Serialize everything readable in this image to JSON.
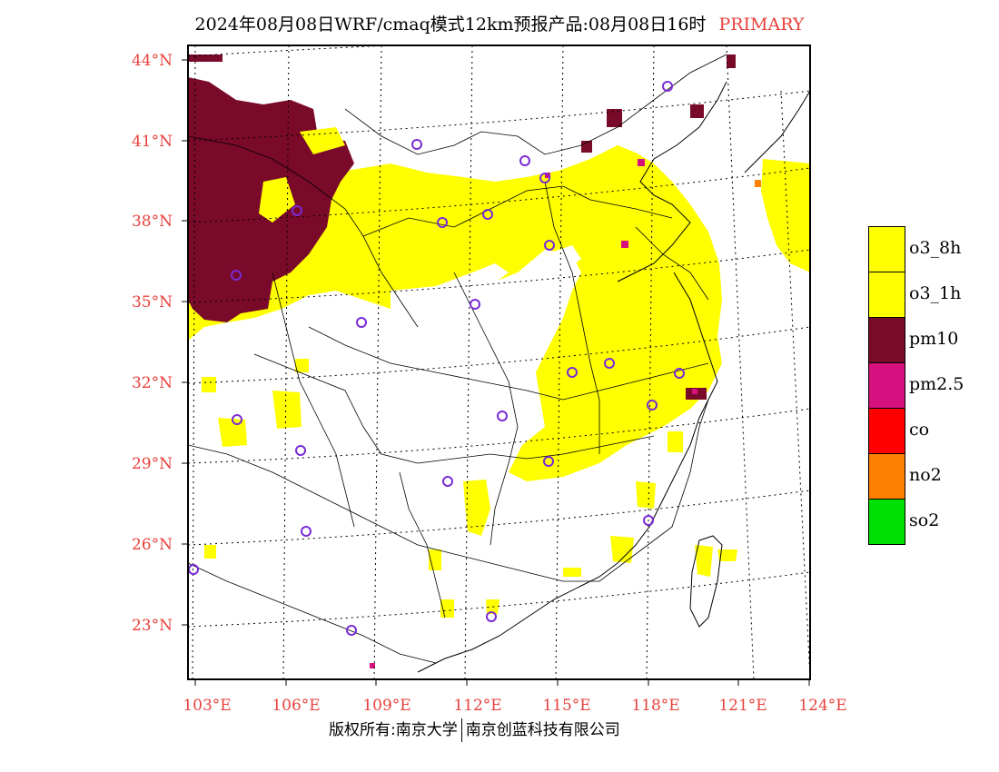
{
  "title": {
    "main": "2024年08月08日WRF/cmaq模式12km预报产品:08月08日16时",
    "tag": "PRIMARY"
  },
  "latitude_labels": [
    "44°N",
    "41°N",
    "38°N",
    "35°N",
    "32°N",
    "29°N",
    "26°N",
    "23°N"
  ],
  "longitude_labels": [
    "103°E",
    "106°E",
    "109°E",
    "112°E",
    "115°E",
    "118°E",
    "121°E",
    "124°E"
  ],
  "legend": [
    {
      "label": "o3_8h",
      "color": "#ffff00"
    },
    {
      "label": "o3_1h",
      "color": "#ffff00"
    },
    {
      "label": "pm10",
      "color": "#7a0a2a"
    },
    {
      "label": "pm2.5",
      "color": "#d6107e"
    },
    {
      "label": "co",
      "color": "#ff0000"
    },
    {
      "label": "no2",
      "color": "#ff8000"
    },
    {
      "label": "so2",
      "color": "#00e000"
    }
  ],
  "footer": {
    "copyright": "版权所有:南京大学",
    "company": "南京创蓝科技有限公司"
  },
  "colors": {
    "label_red": "#e8413c",
    "station_marker": "#7a2ad6"
  }
}
